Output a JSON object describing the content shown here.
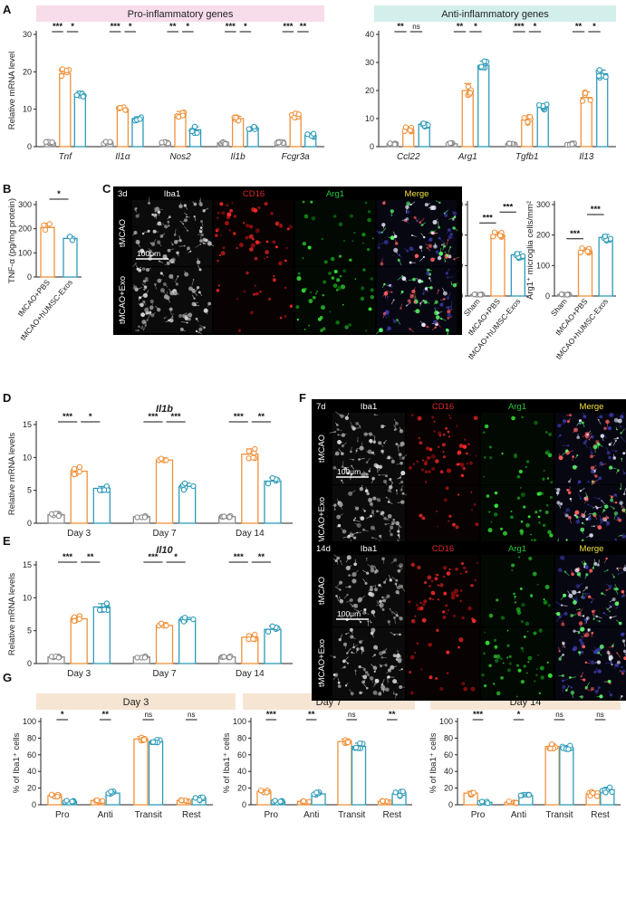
{
  "colors": {
    "sham": "#8a8a8a",
    "pbs": "#f0913a",
    "exo": "#2e9bb8",
    "pro_bg": "#f7dcea",
    "anti_bg": "#d3efec",
    "g_bg": "#f7e5d4"
  },
  "panel_labels": {
    "A": "A",
    "B": "B",
    "C": "C",
    "D": "D",
    "E": "E",
    "F": "F",
    "G": "G"
  },
  "microscopy": {
    "C": {
      "time": "3d",
      "channels": [
        "Iba1",
        "CD16",
        "Arg1",
        "Merge"
      ],
      "rows": [
        "tMCAO",
        "tMCAO+Exo"
      ],
      "scale": "100μm"
    },
    "F_top": {
      "time": "7d",
      "channels": [
        "Iba1",
        "CD16",
        "Arg1",
        "Merge"
      ],
      "rows": [
        "tMCAO",
        "tMCAO+Exo"
      ],
      "scale": "100μm"
    },
    "F_bottom": {
      "time": "14d",
      "channels": [
        "Iba1",
        "CD16",
        "Arg1",
        "Merge"
      ],
      "rows": [
        "tMCAO",
        "tMCAO+Exo"
      ],
      "scale": "100μm"
    }
  },
  "chart_data": [
    {
      "id": "A-pro",
      "type": "bar",
      "header": "Pro-inflammatory genes",
      "ylabel": "Relative mRNA level",
      "ylim": [
        0,
        30
      ],
      "yticks": [
        0,
        10,
        20,
        30
      ],
      "cat_italic": true,
      "categories": [
        "Tnf",
        "Il1α",
        "Nos2",
        "Il1b",
        "Fcgr3a"
      ],
      "series": [
        {
          "name": "Sham",
          "values": [
            1.0,
            1.0,
            1.0,
            1.0,
            1.0
          ],
          "err": [
            0.3,
            0.3,
            0.3,
            0.3,
            0.3
          ]
        },
        {
          "name": "tMCAO+PBS",
          "values": [
            19.5,
            10.0,
            8.5,
            7.5,
            8.2
          ],
          "err": [
            1.2,
            0.7,
            0.9,
            0.6,
            0.8
          ]
        },
        {
          "name": "tMCAO+hUMSC-Exos",
          "values": [
            14.0,
            7.5,
            4.5,
            5.0,
            3.0
          ],
          "err": [
            0.8,
            0.5,
            0.8,
            0.3,
            0.5
          ]
        }
      ],
      "significance": [
        {
          "cat": 0,
          "pair": [
            0,
            1
          ],
          "label": "***"
        },
        {
          "cat": 0,
          "pair": [
            1,
            2
          ],
          "label": "*"
        },
        {
          "cat": 1,
          "pair": [
            0,
            1
          ],
          "label": "***"
        },
        {
          "cat": 1,
          "pair": [
            1,
            2
          ],
          "label": "*"
        },
        {
          "cat": 2,
          "pair": [
            0,
            1
          ],
          "label": "**"
        },
        {
          "cat": 2,
          "pair": [
            1,
            2
          ],
          "label": "*"
        },
        {
          "cat": 3,
          "pair": [
            0,
            1
          ],
          "label": "***"
        },
        {
          "cat": 3,
          "pair": [
            1,
            2
          ],
          "label": "*"
        },
        {
          "cat": 4,
          "pair": [
            0,
            1
          ],
          "label": "***"
        },
        {
          "cat": 4,
          "pair": [
            1,
            2
          ],
          "label": "**"
        }
      ]
    },
    {
      "id": "A-anti",
      "type": "bar",
      "header": "Anti-inflammatory genes",
      "ylabel": "",
      "ylim": [
        0,
        40
      ],
      "yticks": [
        0,
        10,
        20,
        30,
        40
      ],
      "cat_italic": true,
      "categories": [
        "Ccl22",
        "Arg1",
        "Tgfb1",
        "Il13"
      ],
      "series": [
        {
          "name": "Sham",
          "values": [
            1.0,
            1.0,
            1.0,
            1.0
          ],
          "err": [
            0.3,
            0.3,
            0.3,
            0.3
          ]
        },
        {
          "name": "tMCAO+PBS",
          "values": [
            6.0,
            20.0,
            9.5,
            17.5
          ],
          "err": [
            1.0,
            2.5,
            1.2,
            2.0
          ]
        },
        {
          "name": "tMCAO+hUMSC-Exos",
          "values": [
            8.0,
            29.0,
            14.0,
            26.0
          ],
          "err": [
            0.8,
            1.5,
            1.2,
            1.3
          ]
        }
      ],
      "significance": [
        {
          "cat": 0,
          "pair": [
            0,
            1
          ],
          "label": "**"
        },
        {
          "cat": 0,
          "pair": [
            1,
            2
          ],
          "label": "ns"
        },
        {
          "cat": 1,
          "pair": [
            0,
            1
          ],
          "label": "**"
        },
        {
          "cat": 1,
          "pair": [
            1,
            2
          ],
          "label": "*"
        },
        {
          "cat": 2,
          "pair": [
            0,
            1
          ],
          "label": "***"
        },
        {
          "cat": 2,
          "pair": [
            1,
            2
          ],
          "label": "*"
        },
        {
          "cat": 3,
          "pair": [
            0,
            1
          ],
          "label": "**"
        },
        {
          "cat": 3,
          "pair": [
            1,
            2
          ],
          "label": "*"
        }
      ]
    },
    {
      "id": "B",
      "type": "bar",
      "ylabel": "TNF-α (pg/mg protein)",
      "ylim": [
        0,
        300
      ],
      "yticks": [
        0,
        100,
        200,
        300
      ],
      "categories": [
        "tMCAO+PBS",
        "tMCAO+hUMSC-Exos"
      ],
      "series": [
        {
          "name": "TNF-α",
          "values": [
            205,
            160
          ],
          "err": [
            18,
            8
          ]
        }
      ],
      "significance": [
        {
          "pair": [
            0,
            1
          ],
          "label": "*"
        }
      ]
    },
    {
      "id": "C-cd16",
      "type": "bar",
      "ylabel": "CD16⁺ microglia cells/mm²",
      "ylim": [
        0,
        300
      ],
      "yticks": [
        0,
        100,
        200,
        300
      ],
      "categories": [
        "Sham",
        "tMCAO+PBS",
        "tMCAO+hUMSC-Exos"
      ],
      "series": [
        {
          "name": "CD16+ microglia",
          "values": [
            5,
            200,
            135
          ],
          "err": [
            1,
            10,
            10
          ]
        }
      ],
      "significance": [
        {
          "pair": [
            0,
            1
          ],
          "label": "***"
        },
        {
          "pair": [
            1,
            2
          ],
          "label": "***"
        }
      ]
    },
    {
      "id": "C-arg1",
      "type": "bar",
      "ylabel": "Arg1⁺ microglia cells/mm²",
      "ylim": [
        0,
        300
      ],
      "yticks": [
        0,
        100,
        200,
        300
      ],
      "categories": [
        "Sham",
        "tMCAO+PBS",
        "tMCAO+hUMSC-Exos"
      ],
      "series": [
        {
          "name": "Arg1+ microglia",
          "values": [
            5,
            148,
            192
          ],
          "err": [
            1,
            10,
            10
          ]
        }
      ],
      "significance": [
        {
          "pair": [
            0,
            1
          ],
          "label": "***"
        },
        {
          "pair": [
            1,
            2
          ],
          "label": "***"
        }
      ]
    },
    {
      "id": "D",
      "type": "bar",
      "title": "Il1b",
      "ylabel": "Relative mRNA levels",
      "ylim": [
        0,
        15
      ],
      "yticks": [
        0,
        5,
        10,
        15
      ],
      "categories": [
        "Day 3",
        "Day 7",
        "Day 14"
      ],
      "series": [
        {
          "name": "Sham",
          "values": [
            1.3,
            1.0,
            1.0
          ],
          "err": [
            0.2,
            0.1,
            0.1
          ]
        },
        {
          "name": "tMCAO+PBS",
          "values": [
            7.9,
            9.6,
            10.5
          ],
          "err": [
            0.6,
            0.3,
            0.8
          ]
        },
        {
          "name": "tMCAO+hUMSC-Exos",
          "values": [
            5.3,
            5.6,
            6.4
          ],
          "err": [
            0.3,
            0.5,
            0.5
          ]
        }
      ],
      "significance": [
        {
          "cat": 0,
          "pair": [
            0,
            1
          ],
          "label": "***"
        },
        {
          "cat": 0,
          "pair": [
            1,
            2
          ],
          "label": "*"
        },
        {
          "cat": 1,
          "pair": [
            0,
            1
          ],
          "label": "***"
        },
        {
          "cat": 1,
          "pair": [
            1,
            2
          ],
          "label": "***"
        },
        {
          "cat": 2,
          "pair": [
            0,
            1
          ],
          "label": "***"
        },
        {
          "cat": 2,
          "pair": [
            1,
            2
          ],
          "label": "**"
        }
      ]
    },
    {
      "id": "E",
      "type": "bar",
      "title": "Il10",
      "ylabel": "Relative mRNA levels",
      "ylim": [
        0,
        15
      ],
      "yticks": [
        0,
        5,
        10,
        15
      ],
      "categories": [
        "Day 3",
        "Day 7",
        "Day 14"
      ],
      "series": [
        {
          "name": "Sham",
          "values": [
            1.0,
            1.0,
            1.0
          ],
          "err": [
            0.1,
            0.1,
            0.1
          ]
        },
        {
          "name": "tMCAO+PBS",
          "values": [
            6.8,
            5.8,
            4.0
          ],
          "err": [
            0.4,
            0.4,
            0.4
          ]
        },
        {
          "name": "tMCAO+hUMSC-Exos",
          "values": [
            8.6,
            6.7,
            5.2
          ],
          "err": [
            0.5,
            0.3,
            0.5
          ]
        }
      ],
      "significance": [
        {
          "cat": 0,
          "pair": [
            0,
            1
          ],
          "label": "***"
        },
        {
          "cat": 0,
          "pair": [
            1,
            2
          ],
          "label": "**"
        },
        {
          "cat": 1,
          "pair": [
            0,
            1
          ],
          "label": "***"
        },
        {
          "cat": 1,
          "pair": [
            1,
            2
          ],
          "label": "*"
        },
        {
          "cat": 2,
          "pair": [
            0,
            1
          ],
          "label": "***"
        },
        {
          "cat": 2,
          "pair": [
            1,
            2
          ],
          "label": "**"
        }
      ]
    },
    {
      "id": "G-day3",
      "type": "bar",
      "header": "Day  3",
      "ylabel": "% of Iba1⁺ cells",
      "ylim": [
        0,
        100
      ],
      "yticks": [
        0,
        20,
        40,
        60,
        80,
        100
      ],
      "categories": [
        "Pro",
        "Anti",
        "Transit",
        "Rest"
      ],
      "series": [
        {
          "name": "tMCAO+PBS",
          "values": [
            11,
            5,
            79,
            5
          ],
          "err": [
            2,
            1,
            3,
            1
          ]
        },
        {
          "name": "tMCAO+hUMSC-Exos",
          "values": [
            4,
            14,
            76,
            7
          ],
          "err": [
            1,
            2,
            2,
            2
          ]
        }
      ],
      "significance": [
        {
          "cat": 0,
          "pair": [
            0,
            1
          ],
          "label": "*"
        },
        {
          "cat": 1,
          "pair": [
            0,
            1
          ],
          "label": "**"
        },
        {
          "cat": 2,
          "pair": [
            0,
            1
          ],
          "label": "ns"
        },
        {
          "cat": 3,
          "pair": [
            0,
            1
          ],
          "label": "ns"
        }
      ]
    },
    {
      "id": "G-day7",
      "type": "bar",
      "header": "Day  7",
      "ylabel": "% of Iba1⁺ cells",
      "ylim": [
        0,
        100
      ],
      "yticks": [
        0,
        20,
        40,
        60,
        80,
        100
      ],
      "categories": [
        "Pro",
        "Anti",
        "Transit",
        "Rest"
      ],
      "series": [
        {
          "name": "tMCAO+PBS",
          "values": [
            16,
            4,
            76,
            4
          ],
          "err": [
            2,
            1,
            3,
            1
          ]
        },
        {
          "name": "tMCAO+hUMSC-Exos",
          "values": [
            4,
            13,
            70,
            13
          ],
          "err": [
            1,
            2,
            4,
            3
          ]
        }
      ],
      "significance": [
        {
          "cat": 0,
          "pair": [
            0,
            1
          ],
          "label": "***"
        },
        {
          "cat": 1,
          "pair": [
            0,
            1
          ],
          "label": "**"
        },
        {
          "cat": 2,
          "pair": [
            0,
            1
          ],
          "label": "ns"
        },
        {
          "cat": 3,
          "pair": [
            0,
            1
          ],
          "label": "**"
        }
      ]
    },
    {
      "id": "G-day14",
      "type": "bar",
      "header": "Day  14",
      "ylabel": "% of Iba1⁺ cells",
      "ylim": [
        0,
        100
      ],
      "yticks": [
        0,
        20,
        40,
        60,
        80,
        100
      ],
      "categories": [
        "Pro",
        "Anti",
        "Transit",
        "Rest"
      ],
      "series": [
        {
          "name": "tMCAO+PBS",
          "values": [
            14,
            3,
            70,
            13
          ],
          "err": [
            2,
            1,
            3,
            3
          ]
        },
        {
          "name": "tMCAO+hUMSC-Exos",
          "values": [
            3,
            11,
            68,
            18
          ],
          "err": [
            1,
            1,
            3,
            3
          ]
        }
      ],
      "significance": [
        {
          "cat": 0,
          "pair": [
            0,
            1
          ],
          "label": "***"
        },
        {
          "cat": 1,
          "pair": [
            0,
            1
          ],
          "label": "*"
        },
        {
          "cat": 2,
          "pair": [
            0,
            1
          ],
          "label": "ns"
        },
        {
          "cat": 3,
          "pair": [
            0,
            1
          ],
          "label": "ns"
        }
      ]
    }
  ]
}
